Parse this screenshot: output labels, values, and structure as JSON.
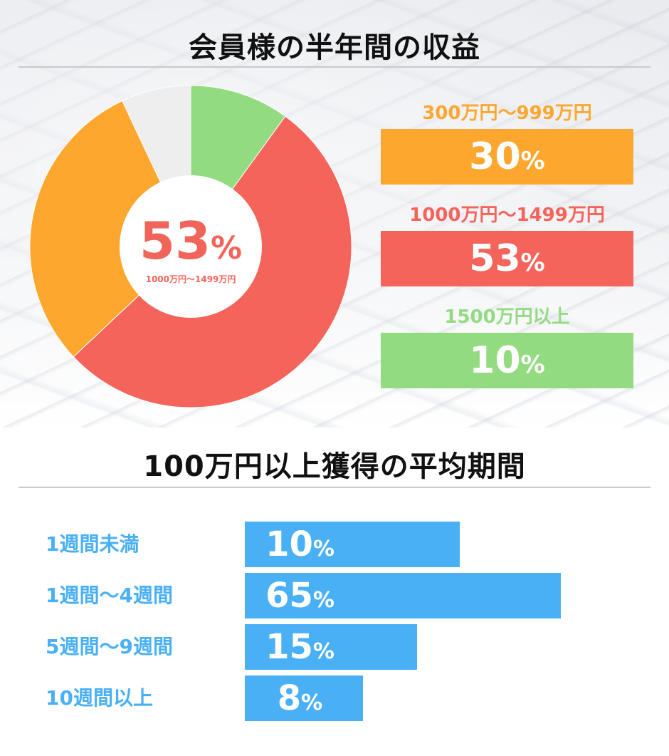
{
  "titles": {
    "income": "会員様の半年間の収益",
    "period": "100万円以上獲得の平均期間"
  },
  "donut_center": {
    "value": "53",
    "unit": "%",
    "label": "1000万円〜1499万円"
  },
  "legend": [
    {
      "label": "300万円〜999万円",
      "value": "30",
      "unit": "%",
      "color": "#fda72f"
    },
    {
      "label": "1000万円〜1499万円",
      "value": "53",
      "unit": "%",
      "color": "#f4645b"
    },
    {
      "label": "1500万円以上",
      "value": "10",
      "unit": "%",
      "color": "#93db81"
    }
  ],
  "bars": [
    {
      "label": "1週間未満",
      "value": "10",
      "unit": "%"
    },
    {
      "label": "1週間〜4週間",
      "value": "65",
      "unit": "%"
    },
    {
      "label": "5週間〜9週間",
      "value": "15",
      "unit": "%"
    },
    {
      "label": "10週間以上",
      "value": "8",
      "unit": "%"
    }
  ],
  "chart_data": [
    {
      "type": "pie",
      "title": "会員様の半年間の収益",
      "categories": [
        "1500万円以上",
        "1000万円〜1499万円",
        "300万円〜999万円",
        ""
      ],
      "values": [
        10,
        53,
        30,
        7
      ],
      "colors": [
        "#93db81",
        "#f4645b",
        "#fda72f",
        "#eeeeee"
      ],
      "donut": true
    },
    {
      "type": "bar",
      "orientation": "horizontal",
      "title": "100万円以上獲得の平均期間",
      "categories": [
        "1週間未満",
        "1週間〜4週間",
        "5週間〜9週間",
        "10週間以上"
      ],
      "values": [
        10,
        65,
        15,
        8
      ],
      "color": "#4ab0f5"
    }
  ]
}
